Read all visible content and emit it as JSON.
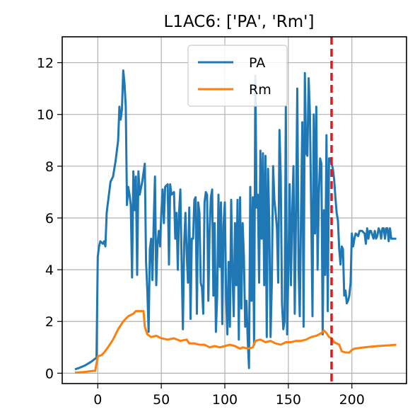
{
  "chart_data": {
    "type": "line",
    "title": "L1AC6: ['PA', 'Rm']",
    "xlabel": "",
    "ylabel": "",
    "xlim": [
      -28,
      243
    ],
    "ylim": [
      -0.4,
      13.0
    ],
    "xticks": [
      0,
      50,
      100,
      150,
      200
    ],
    "yticks": [
      0,
      2,
      4,
      6,
      8,
      10,
      12
    ],
    "grid": true,
    "legend_position": "top-center",
    "vline": {
      "x": 184,
      "color": "#e31a1c",
      "style": "dashed"
    },
    "series": [
      {
        "name": "PA",
        "color": "#1f77b4",
        "points": [
          [
            -18,
            0.15
          ],
          [
            -15,
            0.2
          ],
          [
            -10,
            0.3
          ],
          [
            -5,
            0.45
          ],
          [
            -1,
            0.6
          ],
          [
            0,
            4.5
          ],
          [
            1,
            4.9
          ],
          [
            2,
            5.1
          ],
          [
            4,
            5.0
          ],
          [
            5,
            5.1
          ],
          [
            6,
            4.9
          ],
          [
            7,
            6.2
          ],
          [
            9,
            7.0
          ],
          [
            10,
            7.4
          ],
          [
            12,
            7.6
          ],
          [
            14,
            8.2
          ],
          [
            16,
            9.0
          ],
          [
            17,
            10.3
          ],
          [
            18,
            9.8
          ],
          [
            19,
            10.2
          ],
          [
            20,
            11.7
          ],
          [
            21,
            11.2
          ],
          [
            22,
            10.3
          ],
          [
            23,
            6.5
          ],
          [
            24,
            7.2
          ],
          [
            25,
            6.9
          ],
          [
            26,
            6.5
          ],
          [
            27,
            3.7
          ],
          [
            28,
            7.8
          ],
          [
            29,
            6.3
          ],
          [
            30,
            7.6
          ],
          [
            31,
            3.8
          ],
          [
            32,
            7.8
          ],
          [
            33,
            6.9
          ],
          [
            35,
            7.4
          ],
          [
            37,
            8.1
          ],
          [
            38,
            4.3
          ],
          [
            39,
            3.2
          ],
          [
            40,
            1.6
          ],
          [
            41,
            4.8
          ],
          [
            42,
            5.2
          ],
          [
            43,
            3.6
          ],
          [
            44,
            5.8
          ],
          [
            45,
            7.6
          ],
          [
            46,
            3.4
          ],
          [
            47,
            5.0
          ],
          [
            48,
            5.5
          ],
          [
            49,
            4.9
          ],
          [
            50,
            6.2
          ],
          [
            51,
            7.1
          ],
          [
            52,
            5.8
          ],
          [
            53,
            7.2
          ],
          [
            55,
            7.3
          ],
          [
            56,
            4.2
          ],
          [
            57,
            7.3
          ],
          [
            58,
            6.9
          ],
          [
            60,
            7.0
          ],
          [
            61,
            5.2
          ],
          [
            62,
            6.2
          ],
          [
            63,
            4.0
          ],
          [
            64,
            6.2
          ],
          [
            65,
            7.1
          ],
          [
            66,
            4.3
          ],
          [
            67,
            1.7
          ],
          [
            68,
            5.0
          ],
          [
            69,
            6.2
          ],
          [
            70,
            4.6
          ],
          [
            71,
            3.5
          ],
          [
            72,
            6.4
          ],
          [
            73,
            2.1
          ],
          [
            74,
            5.2
          ],
          [
            75,
            5.2
          ],
          [
            76,
            6.7
          ],
          [
            77,
            6.8
          ],
          [
            78,
            2.3
          ],
          [
            79,
            6.6
          ],
          [
            80,
            6.2
          ],
          [
            81,
            3.5
          ],
          [
            82,
            3.3
          ],
          [
            83,
            2.3
          ],
          [
            84,
            6.6
          ],
          [
            85,
            7.0
          ],
          [
            86,
            6.9
          ],
          [
            87,
            2.8
          ],
          [
            88,
            5.5
          ],
          [
            89,
            6.8
          ],
          [
            90,
            7.1
          ],
          [
            91,
            3.0
          ],
          [
            92,
            5.8
          ],
          [
            93,
            1.6
          ],
          [
            94,
            3.0
          ],
          [
            95,
            6.9
          ],
          [
            96,
            4.1
          ],
          [
            97,
            6.6
          ],
          [
            98,
            1.9
          ],
          [
            99,
            5.7
          ],
          [
            100,
            6.6
          ],
          [
            101,
            3.0
          ],
          [
            102,
            1.5
          ],
          [
            103,
            4.3
          ],
          [
            104,
            1.8
          ],
          [
            105,
            6.7
          ],
          [
            106,
            3.9
          ],
          [
            107,
            2.2
          ],
          [
            108,
            5.8
          ],
          [
            109,
            3.4
          ],
          [
            110,
            6.7
          ],
          [
            111,
            1.3
          ],
          [
            112,
            6.8
          ],
          [
            113,
            2.5
          ],
          [
            114,
            5.8
          ],
          [
            115,
            4.5
          ],
          [
            116,
            1.8
          ],
          [
            117,
            2.8
          ],
          [
            118,
            1.3
          ],
          [
            119,
            0.2
          ],
          [
            120,
            7.2
          ],
          [
            121,
            2.8
          ],
          [
            122,
            6.8
          ],
          [
            123,
            1.1
          ],
          [
            124,
            11.5
          ],
          [
            125,
            6.4
          ],
          [
            126,
            6.9
          ],
          [
            127,
            3.5
          ],
          [
            128,
            8.6
          ],
          [
            129,
            5.2
          ],
          [
            130,
            8.5
          ],
          [
            131,
            3.4
          ],
          [
            132,
            8.4
          ],
          [
            133,
            1.4
          ],
          [
            134,
            7.9
          ],
          [
            135,
            5.8
          ],
          [
            136,
            1.4
          ],
          [
            137,
            3.5
          ],
          [
            138,
            8.0
          ],
          [
            139,
            6.7
          ],
          [
            140,
            6.2
          ],
          [
            141,
            5.6
          ],
          [
            142,
            3.5
          ],
          [
            143,
            9.4
          ],
          [
            144,
            7.6
          ],
          [
            145,
            2.7
          ],
          [
            146,
            1.7
          ],
          [
            147,
            2.0
          ],
          [
            148,
            10.3
          ],
          [
            149,
            1.5
          ],
          [
            150,
            4.0
          ],
          [
            151,
            7.3
          ],
          [
            152,
            3.4
          ],
          [
            153,
            6.2
          ],
          [
            154,
            8.0
          ],
          [
            155,
            2.3
          ],
          [
            156,
            6.2
          ],
          [
            157,
            11.0
          ],
          [
            158,
            4.1
          ],
          [
            159,
            2.2
          ],
          [
            160,
            6.2
          ],
          [
            161,
            9.7
          ],
          [
            162,
            1.8
          ],
          [
            163,
            11.6
          ],
          [
            164,
            8.5
          ],
          [
            165,
            8.4
          ],
          [
            166,
            11.4
          ],
          [
            167,
            10.0
          ],
          [
            168,
            6.2
          ],
          [
            169,
            2.2
          ],
          [
            170,
            10.0
          ],
          [
            171,
            5.4
          ],
          [
            172,
            10.3
          ],
          [
            173,
            4.0
          ],
          [
            174,
            6.9
          ],
          [
            175,
            8.3
          ],
          [
            176,
            8.1
          ],
          [
            177,
            1.5
          ],
          [
            178,
            6.3
          ],
          [
            179,
            3.8
          ],
          [
            180,
            9.2
          ],
          [
            181,
            2.4
          ],
          [
            182,
            8.3
          ],
          [
            183,
            8.3
          ],
          [
            184,
            8.1
          ],
          [
            185,
            7.9
          ],
          [
            186,
            7.5
          ],
          [
            187,
            6.8
          ],
          [
            188,
            6.2
          ],
          [
            189,
            5.9
          ],
          [
            190,
            4.8
          ],
          [
            191,
            4.2
          ],
          [
            192,
            4.9
          ],
          [
            193,
            4.8
          ],
          [
            194,
            3.0
          ],
          [
            195,
            3.2
          ],
          [
            196,
            2.7
          ],
          [
            197,
            2.8
          ],
          [
            198,
            3.0
          ],
          [
            199,
            3.5
          ],
          [
            200,
            5.4
          ],
          [
            201,
            4.9
          ],
          [
            202,
            5.2
          ],
          [
            203,
            5.4
          ],
          [
            205,
            5.3
          ],
          [
            206,
            5.5
          ],
          [
            208,
            5.5
          ],
          [
            210,
            5.4
          ],
          [
            211,
            5.0
          ],
          [
            212,
            5.6
          ],
          [
            213,
            5.2
          ],
          [
            214,
            5.5
          ],
          [
            215,
            5.5
          ],
          [
            217,
            5.2
          ],
          [
            218,
            5.5
          ],
          [
            219,
            5.2
          ],
          [
            220,
            5.3
          ],
          [
            221,
            5.6
          ],
          [
            222,
            5.5
          ],
          [
            223,
            5.2
          ],
          [
            224,
            5.6
          ],
          [
            225,
            5.6
          ],
          [
            226,
            5.2
          ],
          [
            227,
            5.6
          ],
          [
            228,
            5.6
          ],
          [
            229,
            5.1
          ],
          [
            230,
            5.6
          ],
          [
            231,
            5.2
          ],
          [
            233,
            5.2
          ],
          [
            235,
            5.2
          ]
        ]
      },
      {
        "name": "Rm",
        "color": "#ff7f0e",
        "points": [
          [
            -18,
            0.02
          ],
          [
            -10,
            0.05
          ],
          [
            -2,
            0.1
          ],
          [
            0,
            0.65
          ],
          [
            3,
            0.7
          ],
          [
            5,
            0.8
          ],
          [
            8,
            1.0
          ],
          [
            12,
            1.3
          ],
          [
            16,
            1.7
          ],
          [
            20,
            2.0
          ],
          [
            24,
            2.2
          ],
          [
            28,
            2.3
          ],
          [
            30,
            2.4
          ],
          [
            34,
            2.4
          ],
          [
            36,
            2.4
          ],
          [
            37,
            1.8
          ],
          [
            39,
            1.5
          ],
          [
            42,
            1.4
          ],
          [
            46,
            1.45
          ],
          [
            50,
            1.35
          ],
          [
            55,
            1.3
          ],
          [
            60,
            1.35
          ],
          [
            65,
            1.25
          ],
          [
            70,
            1.3
          ],
          [
            72,
            1.15
          ],
          [
            76,
            1.15
          ],
          [
            80,
            1.1
          ],
          [
            84,
            1.1
          ],
          [
            88,
            1.0
          ],
          [
            92,
            1.05
          ],
          [
            96,
            1.0
          ],
          [
            100,
            1.05
          ],
          [
            104,
            1.1
          ],
          [
            108,
            1.05
          ],
          [
            112,
            0.95
          ],
          [
            114,
            1.0
          ],
          [
            118,
            0.95
          ],
          [
            122,
            1.0
          ],
          [
            124,
            1.25
          ],
          [
            128,
            1.3
          ],
          [
            132,
            1.2
          ],
          [
            136,
            1.25
          ],
          [
            140,
            1.15
          ],
          [
            144,
            1.1
          ],
          [
            148,
            1.2
          ],
          [
            152,
            1.2
          ],
          [
            156,
            1.25
          ],
          [
            160,
            1.25
          ],
          [
            164,
            1.3
          ],
          [
            168,
            1.4
          ],
          [
            172,
            1.45
          ],
          [
            176,
            1.55
          ],
          [
            178,
            1.65
          ],
          [
            180,
            1.55
          ],
          [
            182,
            1.4
          ],
          [
            184,
            1.35
          ],
          [
            186,
            1.2
          ],
          [
            190,
            1.1
          ],
          [
            192,
            0.85
          ],
          [
            195,
            0.8
          ],
          [
            198,
            0.8
          ],
          [
            200,
            0.9
          ],
          [
            202,
            0.95
          ],
          [
            210,
            1.0
          ],
          [
            220,
            1.05
          ],
          [
            230,
            1.08
          ],
          [
            235,
            1.1
          ]
        ]
      }
    ]
  }
}
